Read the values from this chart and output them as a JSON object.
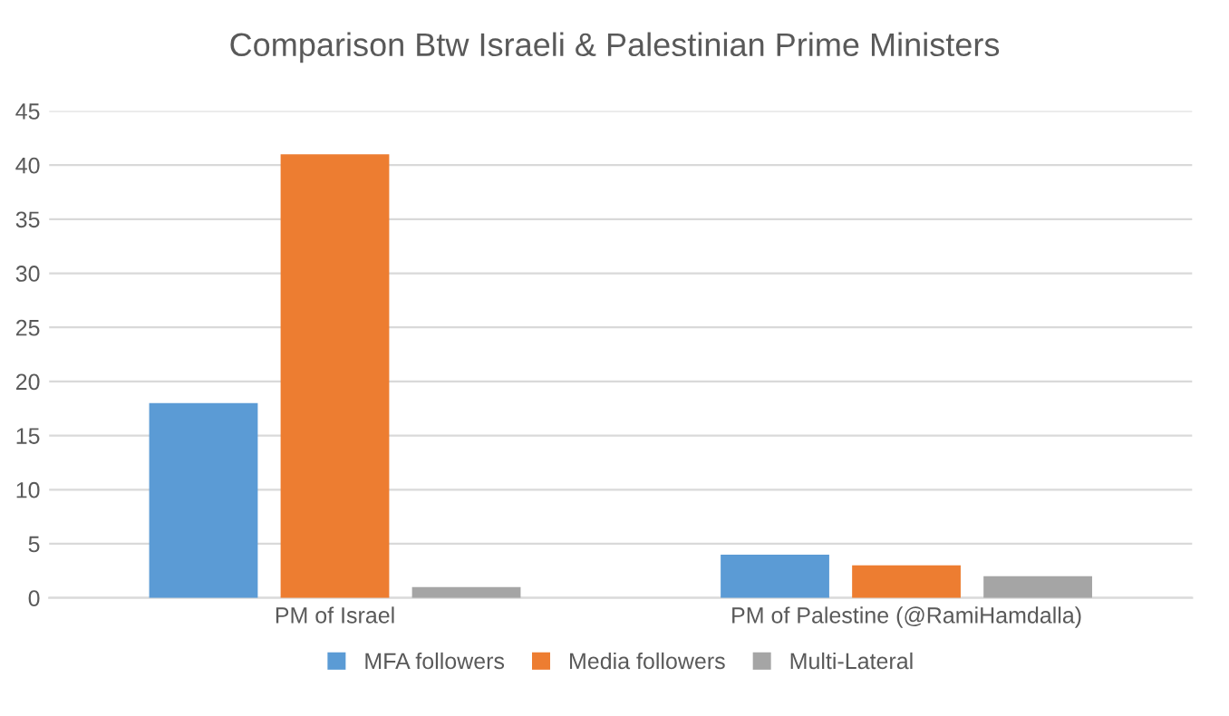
{
  "chart_data": {
    "type": "bar",
    "title": "Comparison Btw Israeli & Palestinian Prime Ministers",
    "categories": [
      "PM of Israel",
      "PM of Palestine (@RamiHamdalla)"
    ],
    "series": [
      {
        "name": "MFA followers",
        "color": "#5b9bd5",
        "values": [
          18,
          4
        ]
      },
      {
        "name": "Media followers",
        "color": "#ed7d31",
        "values": [
          41,
          3
        ]
      },
      {
        "name": "Multi-Lateral",
        "color": "#a5a5a5",
        "values": [
          1,
          2
        ]
      }
    ],
    "ylim": [
      0,
      45
    ],
    "yticks": [
      0,
      5,
      10,
      15,
      20,
      25,
      30,
      35,
      40,
      45
    ],
    "grid": "y",
    "legend": "bottom"
  }
}
